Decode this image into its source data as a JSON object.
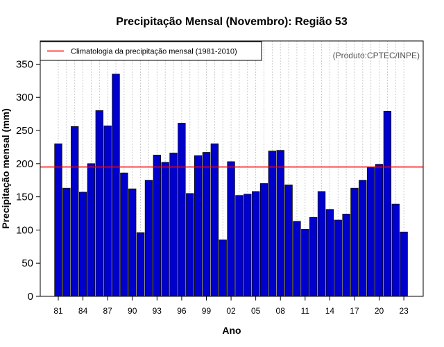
{
  "chart_data": {
    "type": "bar",
    "title": "Precipitação Mensal (Novembro): Região 53",
    "xlabel": "Ano",
    "ylabel": "Precipitação mensal (mm)",
    "credit": "(Produto:CPTEC/INPE)",
    "ylim": [
      0,
      385
    ],
    "yticks": [
      0,
      50,
      100,
      150,
      200,
      250,
      300,
      350
    ],
    "categories": [
      "81",
      "82",
      "83",
      "84",
      "85",
      "86",
      "87",
      "88",
      "89",
      "90",
      "91",
      "92",
      "93",
      "94",
      "95",
      "96",
      "97",
      "98",
      "99",
      "00",
      "01",
      "02",
      "03",
      "04",
      "05",
      "06",
      "07",
      "08",
      "09",
      "10",
      "11",
      "12",
      "13",
      "14",
      "15",
      "16",
      "17",
      "18",
      "19",
      "20",
      "21",
      "22",
      "23"
    ],
    "xtick_labels": [
      "81",
      "84",
      "87",
      "90",
      "93",
      "96",
      "99",
      "02",
      "05",
      "08",
      "11",
      "14",
      "17",
      "20",
      "23"
    ],
    "values": [
      230,
      163,
      256,
      157,
      200,
      280,
      257,
      335,
      186,
      162,
      96,
      175,
      213,
      202,
      216,
      261,
      155,
      212,
      217,
      230,
      85,
      203,
      152,
      154,
      158,
      170,
      219,
      220,
      168,
      113,
      101,
      119,
      158,
      131,
      115,
      124,
      163,
      175,
      194,
      199,
      279,
      139,
      97
    ],
    "climatology": {
      "label": "Climatologia da precipitação mensal (1981-2010)",
      "value": 195
    },
    "colors": {
      "bar": "#0000cc",
      "bar_edge": "#000000",
      "climatology_line": "#ff0000",
      "grid": "#c0c0c0"
    },
    "grid": true,
    "legend_position": "top-left"
  }
}
